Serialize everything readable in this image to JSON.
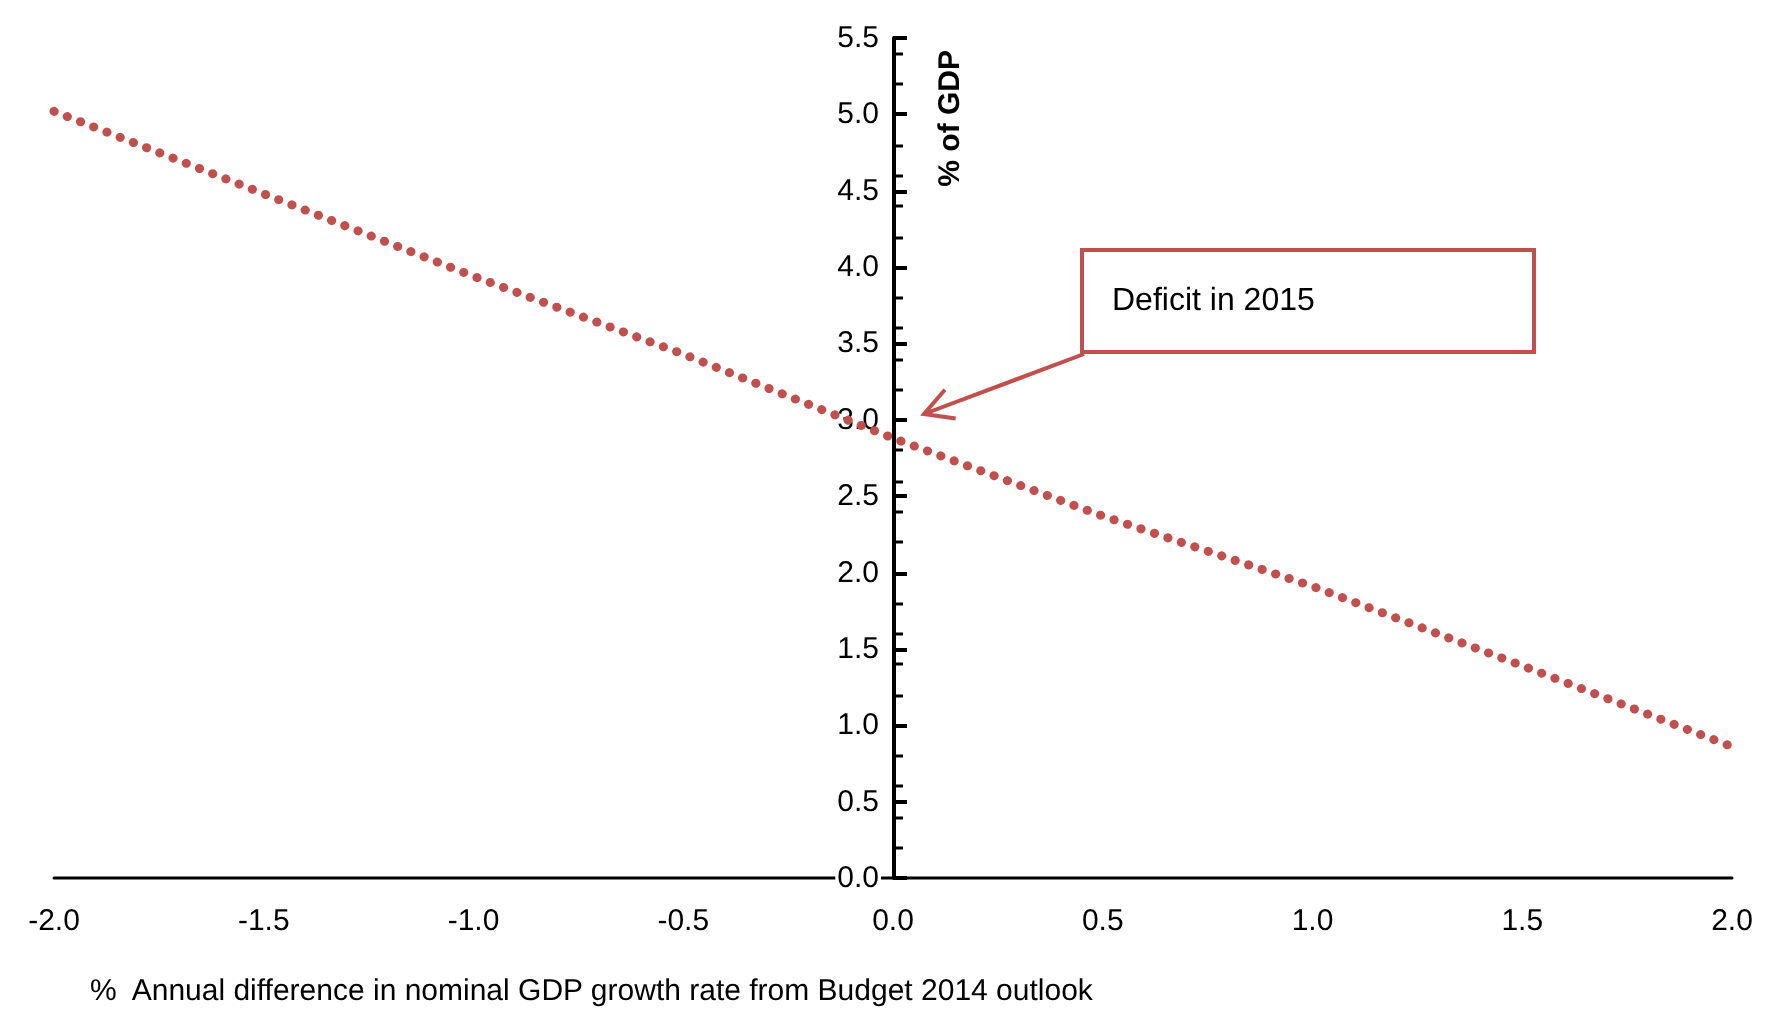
{
  "chart_data": {
    "type": "line",
    "xlabel": "%  Annual difference in nominal GDP growth rate from Budget 2014 outlook",
    "ylabel": "% of GDP",
    "annotations": [
      "Deficit in 2015"
    ],
    "x": [
      -2,
      -1.5,
      -1,
      -0.5,
      0,
      0.5,
      1,
      1.5,
      2
    ],
    "series": [
      {
        "color": "#c0504d",
        "values": [
          5.02,
          4.48,
          3.94,
          3.43,
          2.88,
          2.37,
          1.91,
          1.39,
          0.86
        ]
      }
    ],
    "xlim": [
      -2,
      2
    ],
    "xticks": [
      {
        "value": -2,
        "label": "-2.0"
      },
      {
        "value": -1.5,
        "label": "-1.5"
      },
      {
        "value": -1,
        "label": "-1.0"
      },
      {
        "value": -0.5,
        "label": "-0.5"
      },
      {
        "value": 0,
        "label": "0.0"
      },
      {
        "value": 0.5,
        "label": "0.5"
      },
      {
        "value": 1,
        "label": "1.0"
      },
      {
        "value": 1.5,
        "label": "1.5"
      },
      {
        "value": 2,
        "label": "2.0"
      }
    ],
    "ylim": [
      0,
      5.5
    ],
    "yticks": [
      {
        "value": 0,
        "label": "0.0"
      },
      {
        "value": 0.5,
        "label": "0.5"
      },
      {
        "value": 1,
        "label": "1.0"
      },
      {
        "value": 1.5,
        "label": "1.5"
      },
      {
        "value": 2,
        "label": "2.0"
      },
      {
        "value": 2.5,
        "label": "2.5"
      },
      {
        "value": 3,
        "label": "3.0"
      },
      {
        "value": 3.5,
        "label": "3.5"
      },
      {
        "value": 4,
        "label": "4.0"
      },
      {
        "value": 4.5,
        "label": "4.5"
      },
      {
        "value": 5,
        "label": "5.0"
      },
      {
        "value": 5.5,
        "label": "5.5"
      }
    ],
    "marker": "none",
    "line_style": "dotted"
  }
}
